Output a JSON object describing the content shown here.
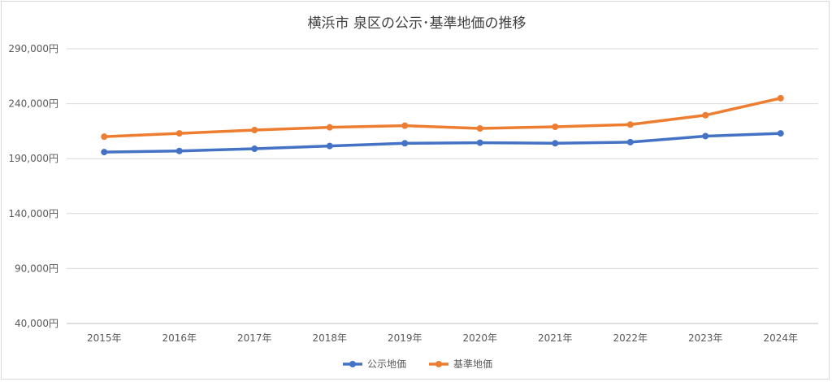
{
  "chart_data": {
    "type": "line",
    "title": "横浜市 泉区の公示･基準地価の推移",
    "categories": [
      "2015年",
      "2016年",
      "2017年",
      "2018年",
      "2019年",
      "2020年",
      "2021年",
      "2022年",
      "2023年",
      "2024年"
    ],
    "yticks": [
      "290,000円",
      "240,000円",
      "190,000円",
      "140,000円",
      "90,000円",
      "40,000円"
    ],
    "ylim": [
      40000,
      290000
    ],
    "grid": true,
    "legend_position": "bottom",
    "series": [
      {
        "name": "公示地価",
        "color": "#4472c4",
        "values": [
          196000,
          197000,
          199000,
          201500,
          204000,
          204500,
          204000,
          205000,
          210500,
          213000
        ]
      },
      {
        "name": "基準地価",
        "color": "#ed7d31",
        "values": [
          210000,
          213000,
          216000,
          218500,
          220000,
          217500,
          219000,
          221000,
          229500,
          245000
        ]
      }
    ]
  }
}
